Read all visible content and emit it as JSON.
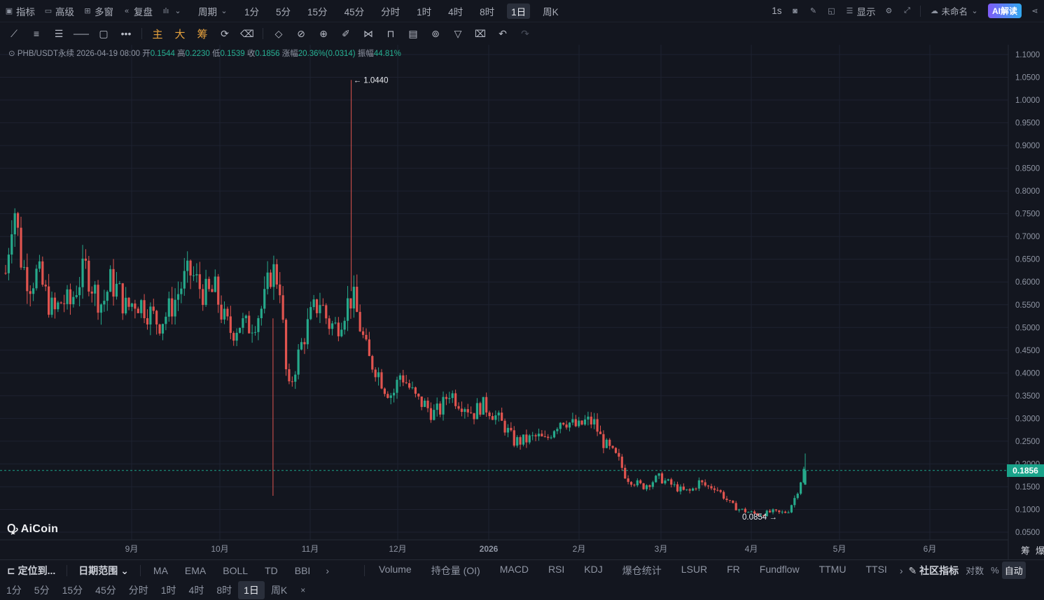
{
  "topbar": {
    "left_items": [
      {
        "icon": "indicator-icon",
        "label": "指标"
      },
      {
        "icon": "advanced-icon",
        "label": "高级"
      },
      {
        "icon": "multi-window-icon",
        "label": "多窗"
      },
      {
        "icon": "replay-icon",
        "label": "复盘"
      },
      {
        "icon": "candle-type-icon",
        "label": ""
      }
    ],
    "period_dropdown": "周期",
    "periods": [
      "1分",
      "5分",
      "15分",
      "45分",
      "分时",
      "1时",
      "4时",
      "8时",
      "1日",
      "周K"
    ],
    "selected_period": "1日",
    "right_items": {
      "interval": "1s",
      "display_label": "显示",
      "layout_name": "未命名",
      "ai_label": "AI解读"
    }
  },
  "drawbar": {
    "tools": [
      "line-tool-icon",
      "parallel-tool-icon",
      "channel-tool-icon",
      "horizontal-line-icon",
      "rectangle-icon",
      "more-tools-icon"
    ],
    "main_label": "主",
    "big_label": "大",
    "chip_label": "筹",
    "right_tools": [
      "magnet-icon",
      "ruler-icon",
      "zoom-icon",
      "brush-icon",
      "pattern-icon",
      "lock-icon",
      "template-icon",
      "link-icon",
      "filter-icon",
      "trash-icon",
      "undo-icon",
      "redo-icon"
    ]
  },
  "info": {
    "symbol": "PHB/USDT永续",
    "datetime": "2026-04-19 08:00",
    "open_label": "开",
    "open": "0.1544",
    "high_label": "高",
    "high": "0.2230",
    "low_label": "低",
    "low": "0.1539",
    "close_label": "收",
    "close": "0.1856",
    "change_label": "涨幅",
    "change": "20.36%(0.0314)",
    "amplitude_label": "振幅",
    "amplitude": "44.81%"
  },
  "chart_data": {
    "type": "candlestick",
    "y_ticks": [
      "1.1000",
      "1.0500",
      "1.0000",
      "0.9500",
      "0.9000",
      "0.8500",
      "0.8000",
      "0.7500",
      "0.7000",
      "0.6500",
      "0.6000",
      "0.5500",
      "0.5000",
      "0.4500",
      "0.4000",
      "0.3500",
      "0.3000",
      "0.2500",
      "0.2000",
      "0.1500",
      "0.1000",
      "0.0500"
    ],
    "ylim": [
      0.05,
      1.1
    ],
    "x_labels": [
      "9月",
      "10月",
      "11月",
      "12月",
      "2026",
      "2月",
      "3月",
      "4月",
      "5月",
      "6月"
    ],
    "current_price": "0.1856",
    "max_label": "1.0440",
    "min_label": "0.0854",
    "close_path": [
      0.62,
      0.78,
      0.64,
      0.6,
      0.62,
      0.57,
      0.53,
      0.56,
      0.55,
      0.6,
      0.63,
      0.58,
      0.55,
      0.6,
      0.58,
      0.54,
      0.56,
      0.55,
      0.53,
      0.51,
      0.53,
      0.56,
      0.6,
      0.62,
      0.59,
      0.57,
      0.58,
      0.52,
      0.49,
      0.51,
      0.5,
      0.52,
      0.55,
      0.63,
      0.6,
      0.35,
      0.42,
      0.48,
      0.53,
      0.56,
      0.51,
      0.5,
      0.54,
      0.57,
      0.5,
      0.43,
      0.41,
      0.37,
      0.35,
      0.4,
      0.37,
      0.34,
      0.33,
      0.31,
      0.32,
      0.36,
      0.34,
      0.33,
      0.31,
      0.33,
      0.32,
      0.3,
      0.28,
      0.25,
      0.25,
      0.255,
      0.26,
      0.25,
      0.28,
      0.3,
      0.29,
      0.28,
      0.295,
      0.29,
      0.25,
      0.23,
      0.21,
      0.17,
      0.16,
      0.15,
      0.16,
      0.17,
      0.16,
      0.15,
      0.14,
      0.14,
      0.16,
      0.15,
      0.15,
      0.13,
      0.11,
      0.1,
      0.095,
      0.09,
      0.09,
      0.095,
      0.092,
      0.095,
      0.13,
      0.1856
    ],
    "low_wick": 0.13,
    "low_wick_position": 0.335,
    "high_wick": 1.044,
    "high_wick_position": 0.433
  },
  "bottom": {
    "locate_label": "定位到...",
    "date_range_label": "日期范围",
    "indicators_main": [
      "MA",
      "EMA",
      "BOLL",
      "TD",
      "BBI"
    ],
    "indicators_sub": [
      "Volume",
      "持仓量 (OI)",
      "MACD",
      "RSI",
      "KDJ",
      "爆仓统计",
      "LSUR",
      "FR",
      "Fundflow",
      "TTMU",
      "TTSI"
    ],
    "community_label": "社区指标",
    "log_label": "对数",
    "percent_label": "%",
    "auto_label": "自动",
    "periods": [
      "1分",
      "5分",
      "15分",
      "45分",
      "分时",
      "1时",
      "4时",
      "8时",
      "1日",
      "周K"
    ],
    "selected_period": "1日"
  },
  "logo_text": "AiCoin",
  "right_edge": {
    "chip": "筹",
    "liq": "爆"
  },
  "colors": {
    "up": "#26a98b",
    "down": "#e0544f",
    "bg": "#13161f",
    "grid": "#1f2330",
    "accent": "#1aa38a"
  }
}
